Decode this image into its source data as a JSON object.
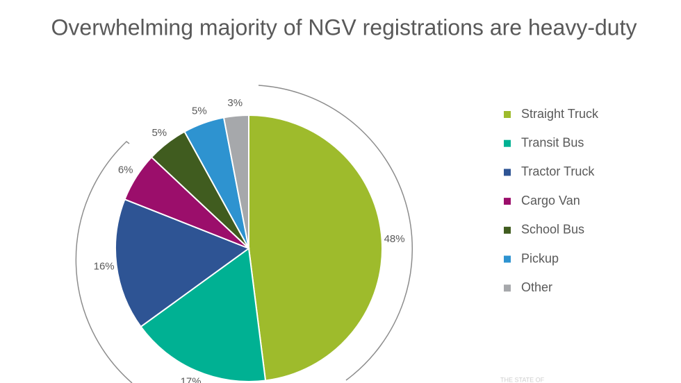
{
  "chart_data": {
    "type": "pie",
    "title": "Overwhelming majority of NGV registrations are heavy-duty",
    "categories": [
      "Straight Truck",
      "Transit Bus",
      "Tractor Truck",
      "Cargo Van",
      "School Bus",
      "Pickup",
      "Other"
    ],
    "values": [
      48,
      17,
      16,
      6,
      5,
      5,
      3
    ],
    "value_labels": [
      "48%",
      "17%",
      "16%",
      "6%",
      "5%",
      "5%",
      "3%"
    ],
    "colors": [
      "#9ebb2c",
      "#00b193",
      "#2e5494",
      "#9b0e6b",
      "#405c1f",
      "#2e93d0",
      "#a6a8ab"
    ],
    "legend": "right",
    "annotations": [
      "THE STATE OF"
    ]
  }
}
